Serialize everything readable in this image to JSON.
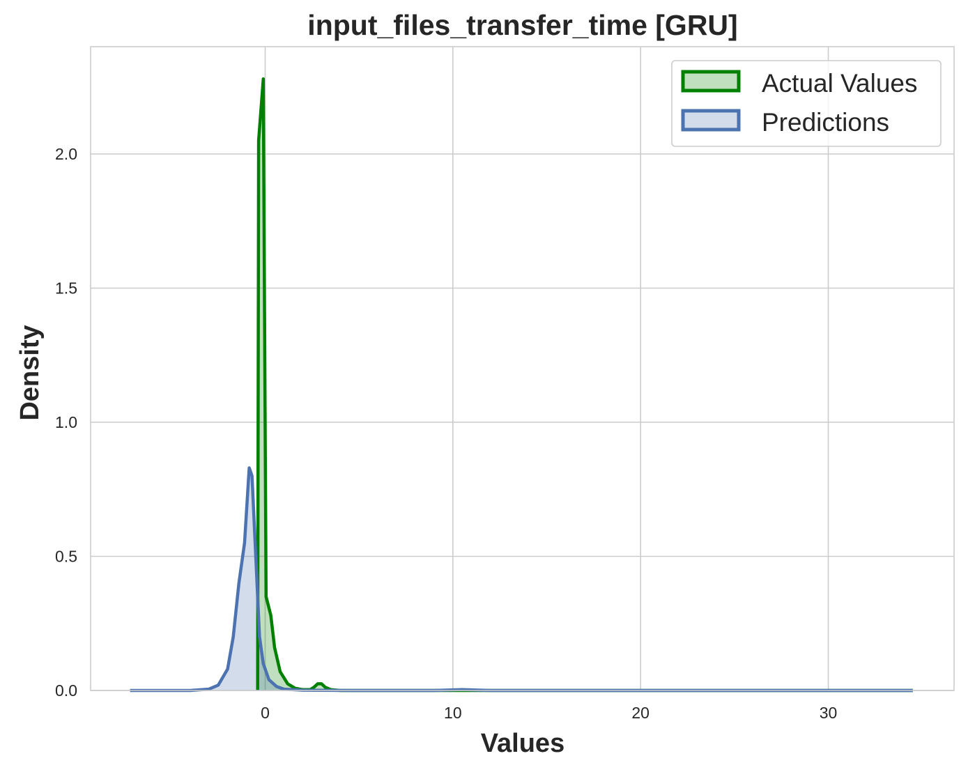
{
  "chart_data": {
    "type": "area",
    "title": "input_files_transfer_time [GRU]",
    "xlabel": "Values",
    "ylabel": "Density",
    "xlim": [
      -9.3,
      36.7
    ],
    "ylim": [
      0,
      2.4
    ],
    "x_ticks": [
      0,
      10,
      20,
      30
    ],
    "x_tick_labels": [
      "0",
      "10",
      "20",
      "30"
    ],
    "y_ticks": [
      0.0,
      0.5,
      1.0,
      1.5,
      2.0
    ],
    "y_tick_labels": [
      "0.0",
      "0.5",
      "1.0",
      "1.5",
      "2.0"
    ],
    "grid": true,
    "legend_position": "top-right",
    "series": [
      {
        "name": "Actual Values",
        "color": "#008000",
        "fill_opacity": 0.25,
        "points": [
          [
            -0.4,
            0.0
          ],
          [
            -0.35,
            2.05
          ],
          [
            -0.1,
            2.28
          ],
          [
            0.05,
            0.35
          ],
          [
            0.3,
            0.28
          ],
          [
            0.5,
            0.16
          ],
          [
            0.8,
            0.07
          ],
          [
            1.2,
            0.025
          ],
          [
            1.6,
            0.008
          ],
          [
            2.0,
            0.003
          ],
          [
            2.4,
            0.003
          ],
          [
            2.6,
            0.012
          ],
          [
            2.8,
            0.025
          ],
          [
            3.0,
            0.025
          ],
          [
            3.2,
            0.012
          ],
          [
            3.5,
            0.003
          ],
          [
            4.0,
            0.0
          ],
          [
            10.0,
            0.0
          ],
          [
            34.5,
            0.0
          ]
        ]
      },
      {
        "name": "Predictions",
        "color": "#4c72b0",
        "fill_opacity": 0.25,
        "points": [
          [
            -7.2,
            0.0
          ],
          [
            -5.0,
            0.0
          ],
          [
            -4.0,
            0.0
          ],
          [
            -3.0,
            0.005
          ],
          [
            -2.5,
            0.02
          ],
          [
            -2.0,
            0.08
          ],
          [
            -1.7,
            0.2
          ],
          [
            -1.4,
            0.4
          ],
          [
            -1.1,
            0.55
          ],
          [
            -0.85,
            0.83
          ],
          [
            -0.7,
            0.8
          ],
          [
            -0.5,
            0.5
          ],
          [
            -0.3,
            0.2
          ],
          [
            -0.1,
            0.1
          ],
          [
            0.2,
            0.04
          ],
          [
            0.6,
            0.015
          ],
          [
            1.0,
            0.005
          ],
          [
            2.0,
            0.001
          ],
          [
            5.0,
            0.0
          ],
          [
            9.0,
            0.0
          ],
          [
            10.5,
            0.003
          ],
          [
            12.0,
            0.0
          ],
          [
            20.0,
            0.0
          ],
          [
            34.5,
            0.0
          ]
        ]
      }
    ]
  }
}
